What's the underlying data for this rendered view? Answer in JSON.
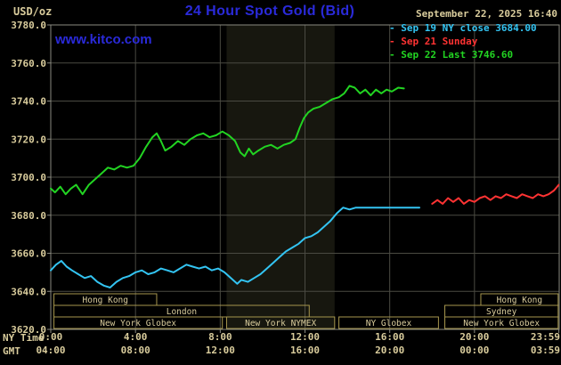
{
  "header": {
    "units_label": "USD/oz",
    "title": "24 Hour Spot Gold (Bid)",
    "datetime": "September 22, 2025 16:40",
    "watermark": "www.kitco.com",
    "legend_marker": "-",
    "legend": [
      {
        "label": "Sep 19 NY close 3684.00",
        "color": "#33c4f2"
      },
      {
        "label": "Sep 21 Sunday",
        "color": "#ff3333"
      },
      {
        "label": "Sep 22 Last 3746.60",
        "color": "#22d422"
      }
    ]
  },
  "axes": {
    "ny_time_label": "NY Time",
    "gmt_label": "GMT",
    "ny_ticks": [
      "0:00",
      "4:00",
      "8:00",
      "12:00",
      "16:00",
      "20:00",
      "23:59"
    ],
    "gmt_ticks": [
      "04:00",
      "08:00",
      "12:00",
      "16:00",
      "20:00",
      "00:00",
      "03:59"
    ],
    "y_ticks": [
      "3780.0",
      "3760.0",
      "3740.0",
      "3720.0",
      "3700.0",
      "3680.0",
      "3660.0",
      "3640.0",
      "3620.0"
    ]
  },
  "colors": {
    "tan": "#d9cc9c",
    "title_blue": "#2a2ada",
    "grid": "#4a4a42",
    "frame": "#8a8a80",
    "band": "#17170f",
    "session_border": "#a6964e"
  },
  "chart_data": {
    "type": "line",
    "title": "24 Hour Spot Gold (Bid)",
    "xlabel": "NY Time",
    "ylabel": "USD/oz",
    "xlim": [
      0,
      24
    ],
    "ylim": [
      3620,
      3780
    ],
    "grid": true,
    "legend_position": "top-right",
    "x_tick_hours": [
      0,
      4,
      8,
      12,
      16,
      20,
      23.983
    ],
    "y_tick_values": [
      3780,
      3760,
      3740,
      3720,
      3700,
      3680,
      3660,
      3640,
      3620
    ],
    "highlight_band_hours": [
      8.3,
      13.4
    ],
    "series": [
      {
        "name": "Sep 19 NY close",
        "color": "#33c4f2",
        "points": [
          [
            0,
            3651
          ],
          [
            0.25,
            3654
          ],
          [
            0.5,
            3656
          ],
          [
            0.75,
            3653
          ],
          [
            1,
            3651
          ],
          [
            1.3,
            3649
          ],
          [
            1.6,
            3647
          ],
          [
            1.9,
            3648
          ],
          [
            2.2,
            3645
          ],
          [
            2.5,
            3643
          ],
          [
            2.8,
            3642
          ],
          [
            3.1,
            3645
          ],
          [
            3.4,
            3647
          ],
          [
            3.7,
            3648
          ],
          [
            4,
            3650
          ],
          [
            4.3,
            3651
          ],
          [
            4.6,
            3649
          ],
          [
            4.9,
            3650
          ],
          [
            5.2,
            3652
          ],
          [
            5.5,
            3651
          ],
          [
            5.8,
            3650
          ],
          [
            6.1,
            3652
          ],
          [
            6.4,
            3654
          ],
          [
            6.7,
            3653
          ],
          [
            7,
            3652
          ],
          [
            7.3,
            3653
          ],
          [
            7.6,
            3651
          ],
          [
            7.9,
            3652
          ],
          [
            8.2,
            3650
          ],
          [
            8.5,
            3647
          ],
          [
            8.8,
            3644
          ],
          [
            9,
            3646
          ],
          [
            9.3,
            3645
          ],
          [
            9.6,
            3647
          ],
          [
            9.9,
            3649
          ],
          [
            10.2,
            3652
          ],
          [
            10.5,
            3655
          ],
          [
            10.8,
            3658
          ],
          [
            11.1,
            3661
          ],
          [
            11.4,
            3663
          ],
          [
            11.7,
            3665
          ],
          [
            12,
            3668
          ],
          [
            12.3,
            3669
          ],
          [
            12.6,
            3671
          ],
          [
            12.9,
            3674
          ],
          [
            13.2,
            3677
          ],
          [
            13.5,
            3681
          ],
          [
            13.8,
            3684
          ],
          [
            14.1,
            3683
          ],
          [
            14.4,
            3684
          ],
          [
            15,
            3684
          ],
          [
            15.6,
            3684
          ],
          [
            16.2,
            3684
          ],
          [
            16.8,
            3684
          ],
          [
            17.4,
            3684
          ]
        ]
      },
      {
        "name": "Sep 21 Sunday",
        "color": "#ff3333",
        "points": [
          [
            18,
            3686
          ],
          [
            18.25,
            3688
          ],
          [
            18.5,
            3686
          ],
          [
            18.75,
            3689
          ],
          [
            19,
            3687
          ],
          [
            19.25,
            3689
          ],
          [
            19.5,
            3686
          ],
          [
            19.75,
            3688
          ],
          [
            20,
            3687
          ],
          [
            20.25,
            3689
          ],
          [
            20.5,
            3690
          ],
          [
            20.75,
            3688
          ],
          [
            21,
            3690
          ],
          [
            21.25,
            3689
          ],
          [
            21.5,
            3691
          ],
          [
            21.75,
            3690
          ],
          [
            22,
            3689
          ],
          [
            22.25,
            3691
          ],
          [
            22.5,
            3690
          ],
          [
            22.75,
            3689
          ],
          [
            23,
            3691
          ],
          [
            23.25,
            3690
          ],
          [
            23.5,
            3691
          ],
          [
            23.75,
            3693
          ],
          [
            23.98,
            3696
          ]
        ]
      },
      {
        "name": "Sep 22 Last",
        "color": "#22d422",
        "points": [
          [
            0,
            3694
          ],
          [
            0.2,
            3692
          ],
          [
            0.45,
            3695
          ],
          [
            0.7,
            3691
          ],
          [
            0.95,
            3694
          ],
          [
            1.2,
            3696
          ],
          [
            1.5,
            3691
          ],
          [
            1.8,
            3696
          ],
          [
            2.1,
            3699
          ],
          [
            2.4,
            3702
          ],
          [
            2.7,
            3705
          ],
          [
            3,
            3704
          ],
          [
            3.3,
            3706
          ],
          [
            3.6,
            3705
          ],
          [
            3.9,
            3706
          ],
          [
            4.2,
            3710
          ],
          [
            4.5,
            3716
          ],
          [
            4.8,
            3721
          ],
          [
            5,
            3723
          ],
          [
            5.2,
            3719
          ],
          [
            5.4,
            3714
          ],
          [
            5.7,
            3716
          ],
          [
            6,
            3719
          ],
          [
            6.3,
            3717
          ],
          [
            6.6,
            3720
          ],
          [
            6.9,
            3722
          ],
          [
            7.2,
            3723
          ],
          [
            7.5,
            3721
          ],
          [
            7.8,
            3722
          ],
          [
            8.1,
            3724
          ],
          [
            8.4,
            3722
          ],
          [
            8.7,
            3719
          ],
          [
            8.95,
            3713
          ],
          [
            9.15,
            3711
          ],
          [
            9.35,
            3715
          ],
          [
            9.55,
            3712
          ],
          [
            9.8,
            3714
          ],
          [
            10.1,
            3716
          ],
          [
            10.4,
            3717
          ],
          [
            10.7,
            3715
          ],
          [
            11,
            3717
          ],
          [
            11.3,
            3718
          ],
          [
            11.55,
            3720
          ],
          [
            11.75,
            3726
          ],
          [
            11.95,
            3731
          ],
          [
            12.15,
            3734
          ],
          [
            12.4,
            3736
          ],
          [
            12.7,
            3737
          ],
          [
            13,
            3739
          ],
          [
            13.3,
            3741
          ],
          [
            13.6,
            3742
          ],
          [
            13.85,
            3744
          ],
          [
            14.1,
            3748
          ],
          [
            14.35,
            3747
          ],
          [
            14.6,
            3744
          ],
          [
            14.85,
            3746
          ],
          [
            15.1,
            3743
          ],
          [
            15.35,
            3746
          ],
          [
            15.6,
            3744
          ],
          [
            15.85,
            3746
          ],
          [
            16.1,
            3745
          ],
          [
            16.4,
            3747
          ],
          [
            16.67,
            3746.6
          ]
        ]
      }
    ],
    "sessions": [
      {
        "row": 0,
        "start": 0.15,
        "end": 5.0,
        "label": "Hong Kong"
      },
      {
        "row": 0,
        "start": 20.3,
        "end": 23.95,
        "label": "Hong Kong"
      },
      {
        "row": 1,
        "start": 0.15,
        "end": 12.2,
        "label": "London"
      },
      {
        "row": 1,
        "start": 18.6,
        "end": 23.95,
        "label": "Sydney"
      },
      {
        "row": 2,
        "start": 0.15,
        "end": 8.1,
        "label": "New York Globex"
      },
      {
        "row": 2,
        "start": 8.3,
        "end": 13.4,
        "label": "New York NYMEX"
      },
      {
        "row": 2,
        "start": 13.6,
        "end": 18.3,
        "label": "NY Globex"
      },
      {
        "row": 2,
        "start": 18.6,
        "end": 23.95,
        "label": "New York Globex"
      }
    ]
  }
}
